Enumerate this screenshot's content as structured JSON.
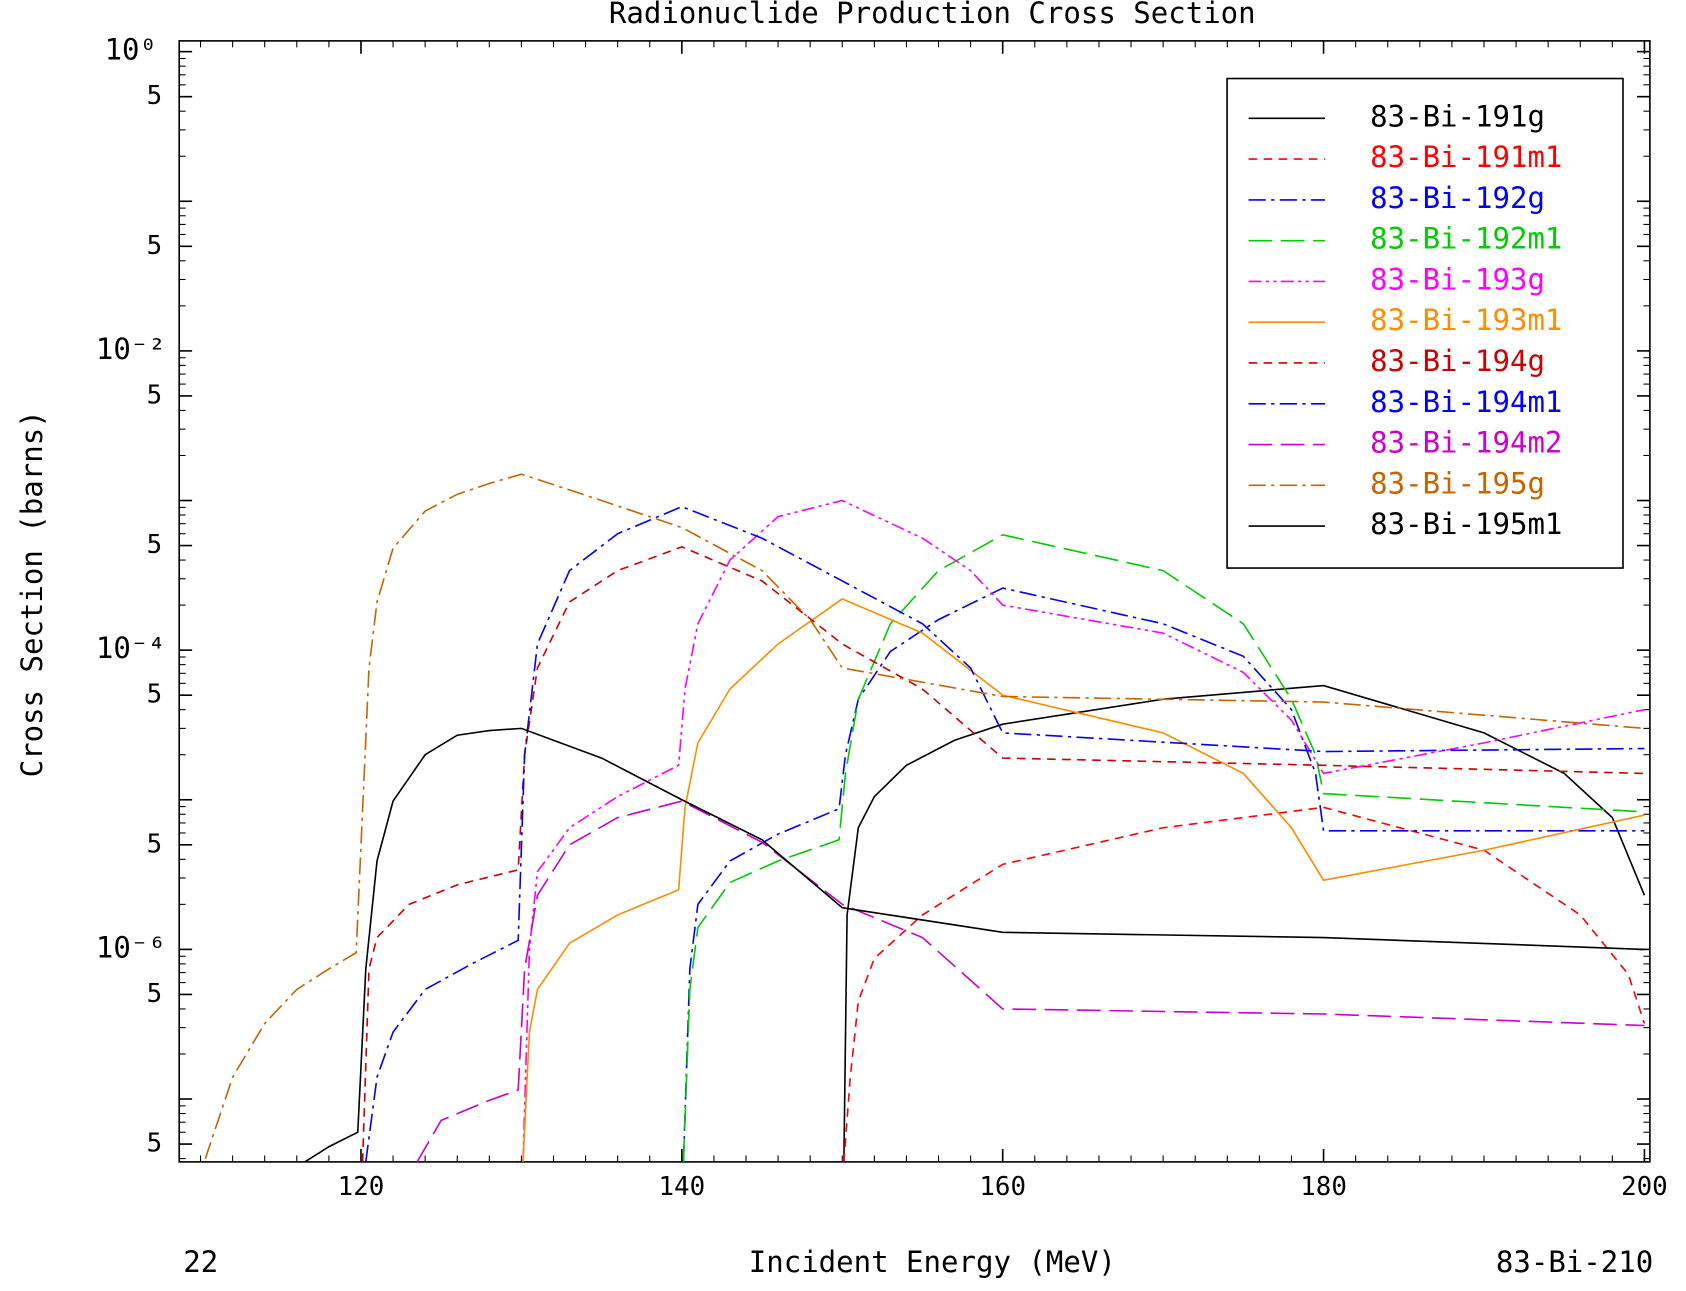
{
  "chart_data": {
    "type": "line",
    "title": "Radionuclide Production Cross Section",
    "xlabel": "Incident Energy (MeV)",
    "ylabel": "Cross Section (barns)",
    "footer_left": "22",
    "footer_right": "83-Bi-210",
    "xlim": [
      108.67,
      200.34
    ],
    "xticks": [
      120,
      140,
      160,
      180,
      200
    ],
    "ylim": [
      3.8e-08,
      1.18
    ],
    "yscale": "log",
    "yticks": [
      {
        "value": 1,
        "label": "10⁰"
      },
      {
        "value": 0.5,
        "label": "5"
      },
      {
        "value": 0.05,
        "label": "5"
      },
      {
        "value": 0.01,
        "label": "10⁻²"
      },
      {
        "value": 0.005,
        "label": "5"
      },
      {
        "value": 0.0005,
        "label": "5"
      },
      {
        "value": 0.0001,
        "label": "10⁻⁴"
      },
      {
        "value": 5e-05,
        "label": "5"
      },
      {
        "value": 5e-06,
        "label": "5"
      },
      {
        "value": 1e-06,
        "label": "10⁻⁶"
      },
      {
        "value": 5e-07,
        "label": "5"
      },
      {
        "value": 5e-08,
        "label": "5"
      }
    ],
    "ydecade_ticks": [
      0.1,
      0.001,
      1e-05,
      1e-07
    ],
    "minor_ticks": true,
    "legend": "upper right",
    "series": [
      {
        "name": "83-Bi-191g",
        "color": "#000000",
        "dash": "solid",
        "x": [
          150.1,
          150.3,
          151,
          152,
          154,
          157,
          160,
          170,
          180,
          190,
          195,
          198,
          200
        ],
        "values": [
          3.8e-08,
          1.7e-06,
          6.5e-06,
          1.05e-05,
          1.7e-05,
          2.5e-05,
          3.2e-05,
          4.7e-05,
          5.8e-05,
          2.8e-05,
          1.5e-05,
          7.6e-06,
          2.3e-06
        ]
      },
      {
        "name": "83-Bi-191m1",
        "color": "#ff0000",
        "dash": "dashed",
        "x": [
          150.1,
          150.5,
          151,
          152,
          155,
          160,
          170,
          180,
          190,
          196,
          199,
          200
        ],
        "values": [
          3.8e-08,
          1.4e-07,
          4.5e-07,
          8.7e-07,
          1.7e-06,
          3.7e-06,
          6.5e-06,
          8.9e-06,
          4.6e-06,
          1.7e-06,
          6.8e-07,
          3.2e-07
        ]
      },
      {
        "name": "83-Bi-192g",
        "color": "#0000ff",
        "dash": "dash-dot",
        "x": [
          140.1,
          140.5,
          141,
          143,
          146,
          149.8,
          150.2,
          151,
          153,
          156,
          160,
          170,
          175,
          178,
          179.5,
          180,
          200
        ],
        "values": [
          3.8e-08,
          7.4e-07,
          2e-06,
          3.9e-06,
          5.9e-06,
          8.7e-06,
          2e-05,
          4.7e-05,
          9.8e-05,
          0.00016,
          0.00026,
          0.00015,
          9.1e-05,
          4e-05,
          1.5e-05,
          6.2e-06,
          6.2e-06
        ]
      },
      {
        "name": "83-Bi-192m1",
        "color": "#00cc00",
        "dash": "long-dash",
        "x": [
          140.1,
          140.5,
          141,
          143,
          146,
          149.8,
          150.2,
          151,
          153,
          156,
          160,
          170,
          175,
          178,
          179.5,
          180,
          200
        ],
        "values": [
          3.8e-08,
          5.4e-07,
          1.4e-06,
          2.8e-06,
          3.9e-06,
          5.4e-06,
          1.5e-05,
          4.7e-05,
          0.00015,
          0.00034,
          0.00059,
          0.00034,
          0.00015,
          4.7e-05,
          2e-05,
          1.1e-05,
          8.3e-06
        ]
      },
      {
        "name": "83-Bi-193g",
        "color": "#ff00ff",
        "dash": "dash-dot-dot",
        "x": [
          130.1,
          130.5,
          131,
          133,
          136,
          139.8,
          140.2,
          141,
          143,
          146,
          150,
          155,
          158,
          160,
          170,
          175,
          178,
          180,
          190,
          200
        ],
        "values": [
          3.8e-08,
          1e-06,
          3.3e-06,
          6.5e-06,
          1.05e-05,
          1.7e-05,
          5.5e-05,
          0.00015,
          0.0004,
          0.00078,
          0.001,
          0.00056,
          0.00034,
          0.0002,
          0.00013,
          7.1e-05,
          3.4e-05,
          1.5e-05,
          2.4e-05,
          4e-05
        ]
      },
      {
        "name": "83-Bi-193m1",
        "color": "#ff8c00",
        "dash": "solid",
        "x": [
          130.1,
          130.5,
          131,
          133,
          136,
          139.8,
          140.2,
          141,
          143,
          146,
          150,
          155,
          160,
          170,
          175,
          178,
          180,
          190,
          200
        ],
        "values": [
          3.8e-08,
          2.8e-07,
          5.4e-07,
          1.1e-06,
          1.7e-06,
          2.5e-06,
          8.9e-06,
          2.4e-05,
          5.5e-05,
          0.00011,
          0.00022,
          0.00013,
          5e-05,
          2.8e-05,
          1.5e-05,
          6.5e-06,
          2.9e-06,
          4.6e-06,
          7.9e-06
        ]
      },
      {
        "name": "83-Bi-194g",
        "color": "#cc0000",
        "dash": "dashed",
        "x": [
          120.1,
          120.5,
          121,
          123,
          126,
          129.8,
          130.2,
          131,
          133,
          136,
          140,
          145,
          150,
          155,
          160,
          180,
          200
        ],
        "values": [
          3.8e-08,
          7.4e-07,
          1.2e-06,
          2e-06,
          2.7e-06,
          3.4e-06,
          2e-05,
          7.6e-05,
          0.00021,
          0.00034,
          0.00049,
          0.00029,
          0.00011,
          5.5e-05,
          1.9e-05,
          1.7e-05,
          1.5e-05
        ]
      },
      {
        "name": "83-Bi-194m1",
        "color": "#0000ff",
        "dash": "dash-dot",
        "x": [
          120.3,
          121,
          122,
          124,
          127,
          129.8,
          130.2,
          131,
          133,
          136,
          140,
          145,
          150,
          155,
          158,
          160,
          180,
          200
        ],
        "values": [
          3.8e-08,
          1.4e-07,
          2.8e-07,
          5.4e-07,
          8.1e-07,
          1.15e-06,
          2e-05,
          0.00011,
          0.00034,
          0.0006,
          0.00091,
          0.00056,
          0.00029,
          0.00015,
          7.6e-05,
          2.8e-05,
          2.1e-05,
          2.2e-05
        ]
      },
      {
        "name": "83-Bi-194m2",
        "color": "#cc00cc",
        "dash": "long-dash",
        "x": [
          123.5,
          125,
          128,
          129.8,
          130.2,
          131,
          133,
          136,
          140,
          145,
          150,
          155,
          160,
          180,
          200
        ],
        "values": [
          3.8e-08,
          7.2e-08,
          9.8e-08,
          1.15e-07,
          7.4e-07,
          2.3e-06,
          5e-06,
          7.6e-06,
          9.8e-06,
          5.2e-06,
          2e-06,
          1.2e-06,
          4e-07,
          3.7e-07,
          3.1e-07
        ]
      },
      {
        "name": "83-Bi-195g",
        "color": "#c86400",
        "dash": "dash-dot",
        "x": [
          110.3,
          112,
          114,
          116,
          118,
          119.7,
          120.5,
          121,
          122,
          124,
          126,
          128,
          130,
          135,
          140,
          145,
          148,
          150,
          160,
          180,
          200
        ],
        "values": [
          4e-08,
          1.4e-07,
          3.2e-07,
          5.4e-07,
          7.4e-07,
          9.5e-07,
          7.6e-05,
          0.00021,
          0.00048,
          0.00085,
          0.0011,
          0.0013,
          0.0015,
          0.001,
          0.00066,
          0.00034,
          0.00016,
          7.6e-05,
          4.9e-05,
          4.5e-05,
          3e-05
        ]
      },
      {
        "name": "83-Bi-195m1",
        "color": "#000000",
        "dash": "solid",
        "x": [
          116.5,
          118,
          119.8,
          120.3,
          121,
          122,
          124,
          126,
          128,
          130,
          135,
          140,
          145,
          150,
          160,
          180,
          200
        ],
        "values": [
          3.8e-08,
          4.8e-08,
          6e-08,
          7.4e-07,
          3.9e-06,
          9.8e-06,
          2e-05,
          2.7e-05,
          2.9e-05,
          3e-05,
          1.9e-05,
          1e-05,
          5.4e-06,
          1.9e-06,
          1.3e-06,
          1.2e-06,
          1e-06
        ]
      }
    ]
  }
}
